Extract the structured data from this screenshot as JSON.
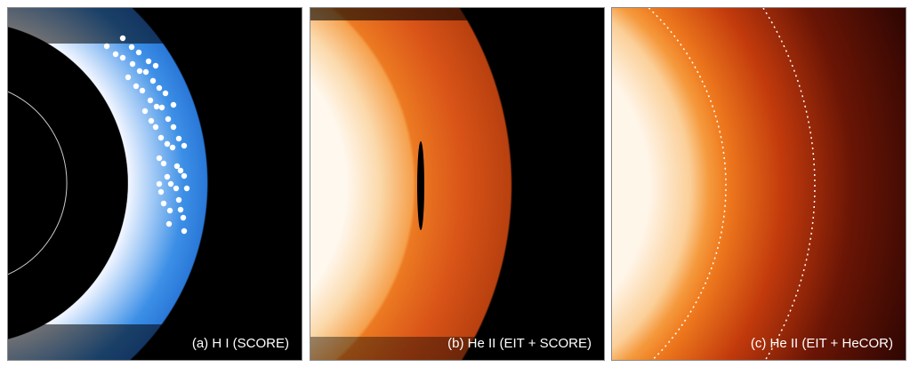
{
  "figure": {
    "panels": [
      {
        "label": "(a) H I (SCORE)",
        "colormap": "blue",
        "accent": "#2f86e8"
      },
      {
        "label": "(b) He II (EIT + SCORE)",
        "colormap": "orange-red",
        "accent": "#e2561a"
      },
      {
        "label": "(c) He II (EIT + HeCOR)",
        "colormap": "orange-red",
        "accent": "#c23a0c"
      }
    ]
  }
}
